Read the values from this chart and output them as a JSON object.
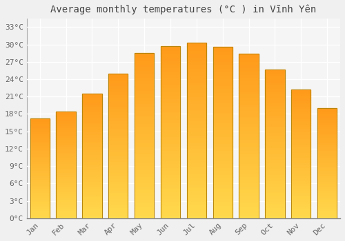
{
  "title": "Average monthly temperatures (°C ) in Vĩnh Yên",
  "months": [
    "Jan",
    "Feb",
    "Mar",
    "Apr",
    "May",
    "Jun",
    "Jul",
    "Aug",
    "Sep",
    "Oct",
    "Nov",
    "Dec"
  ],
  "temperatures": [
    17.2,
    18.4,
    21.5,
    25.0,
    28.5,
    29.7,
    30.3,
    29.6,
    28.4,
    25.7,
    22.2,
    19.0
  ],
  "bar_color": "#FFA620",
  "bar_edge_color": "#B8860B",
  "yticks": [
    0,
    3,
    6,
    9,
    12,
    15,
    18,
    21,
    24,
    27,
    30,
    33
  ],
  "ylim": [
    0,
    34.5
  ],
  "background_color": "#f0f0f0",
  "plot_bg_color": "#f5f5f5",
  "grid_color": "#ffffff",
  "title_fontsize": 10,
  "tick_fontsize": 8,
  "bar_width": 0.75
}
